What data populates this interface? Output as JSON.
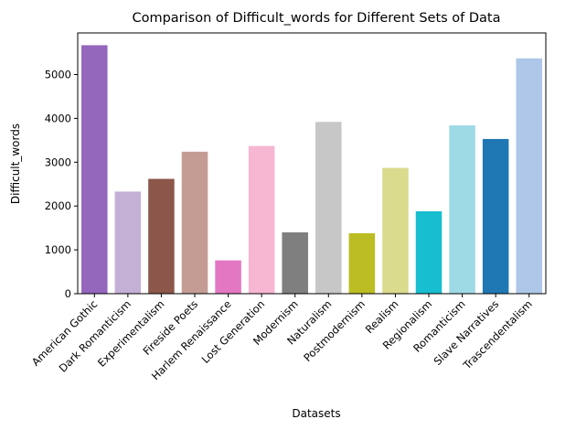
{
  "chart_data": {
    "type": "bar",
    "title": "Comparison of Difficult_words for Different Sets of Data",
    "xlabel": "Datasets",
    "ylabel": "Difficult_words",
    "ylim": [
      0,
      5950
    ],
    "yticks": [
      0,
      1000,
      2000,
      3000,
      4000,
      5000
    ],
    "grid": false,
    "legend": "none",
    "categories": [
      "American Gothic",
      "Dark Romanticism",
      "Experimentalism",
      "Fireside Poets",
      "Harlem Renaissance",
      "Lost Generation",
      "Modernism",
      "Naturalism",
      "Postmodernism",
      "Realism",
      "Regionalism",
      "Romanticism",
      "Slave Narratives",
      "Trascendentalism"
    ],
    "values": [
      5670,
      2330,
      2620,
      3240,
      760,
      3370,
      1400,
      3920,
      1380,
      2870,
      1880,
      3840,
      3530,
      5370
    ],
    "colors": [
      "#9467bd",
      "#c5b0d5",
      "#8c564b",
      "#c49c94",
      "#e377c2",
      "#f7b6d2",
      "#7f7f7f",
      "#c7c7c7",
      "#bcbd22",
      "#dbdb8d",
      "#17becf",
      "#9edae5",
      "#1f77b4",
      "#aec7e8"
    ]
  }
}
